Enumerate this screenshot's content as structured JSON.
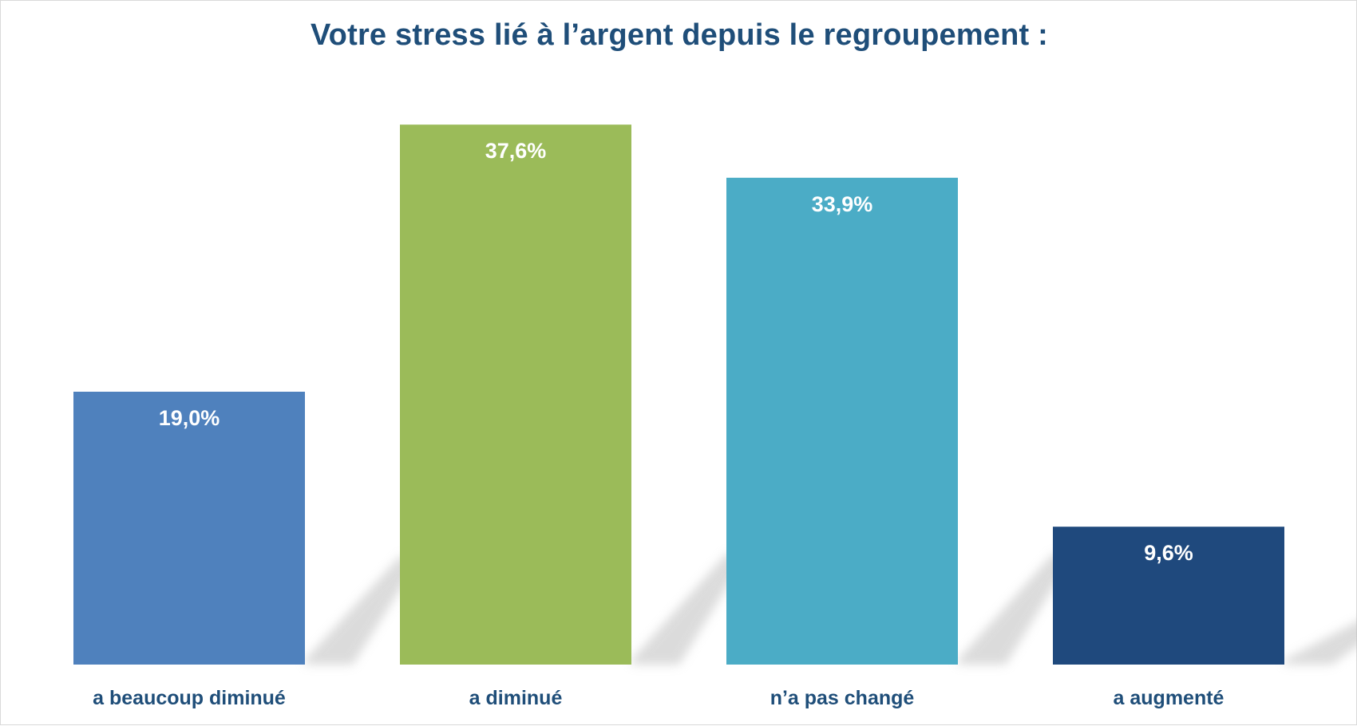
{
  "chart_data": {
    "type": "bar",
    "title": "Votre stress lié à l’argent depuis le regroupement :",
    "xlabel": "",
    "ylabel": "",
    "categories": [
      "a beaucoup diminué",
      "a diminué",
      "n’a pas changé",
      "a augmenté"
    ],
    "values": [
      19.0,
      37.6,
      33.9,
      9.6
    ],
    "value_labels": [
      "19,0%",
      "37,6%",
      "33,9%",
      "9,6%"
    ],
    "colors": [
      "#4f81bd",
      "#9bbb59",
      "#4bacc6",
      "#1f497d"
    ],
    "ylim": [
      0,
      40
    ],
    "grid": false,
    "legend": "none"
  }
}
